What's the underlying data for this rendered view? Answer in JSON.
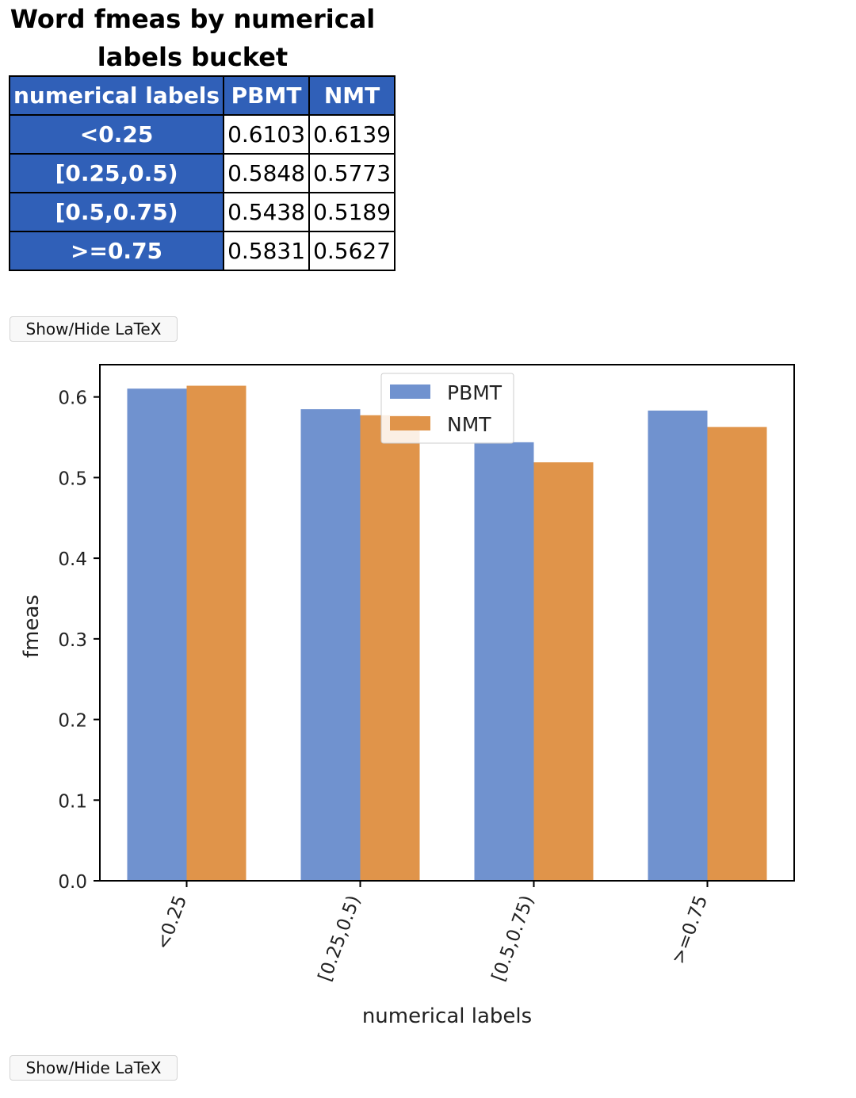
{
  "page": {
    "title": "Word fmeas by numerical labels bucket",
    "latex_button_label": "Show/Hide LaTeX"
  },
  "table": {
    "headers": [
      "numerical labels",
      "PBMT",
      "NMT"
    ],
    "rows": [
      {
        "label": "<0.25",
        "values": [
          "0.6103",
          "0.6139"
        ]
      },
      {
        "label": "[0.25,0.5)",
        "values": [
          "0.5848",
          "0.5773"
        ]
      },
      {
        "label": "[0.5,0.75)",
        "values": [
          "0.5438",
          "0.5189"
        ]
      },
      {
        "label": ">=0.75",
        "values": [
          "0.5831",
          "0.5627"
        ]
      }
    ]
  },
  "colors": {
    "table_header": "#3060b8",
    "pbmt": "#7092cf",
    "nmt": "#e0944a"
  },
  "chart_data": {
    "type": "bar",
    "categories": [
      "<0.25",
      "[0.25,0.5)",
      "[0.5,0.75)",
      ">=0.75"
    ],
    "series": [
      {
        "name": "PBMT",
        "values": [
          0.6103,
          0.5848,
          0.5438,
          0.5831
        ]
      },
      {
        "name": "NMT",
        "values": [
          0.6139,
          0.5773,
          0.5189,
          0.5627
        ]
      }
    ],
    "title": "",
    "xlabel": "numerical labels",
    "ylabel": "fmeas",
    "ylim": [
      0,
      0.64
    ],
    "yticks": [
      "0.0",
      "0.1",
      "0.2",
      "0.3",
      "0.4",
      "0.5",
      "0.6"
    ],
    "legend": "upper-center",
    "grid": false
  }
}
